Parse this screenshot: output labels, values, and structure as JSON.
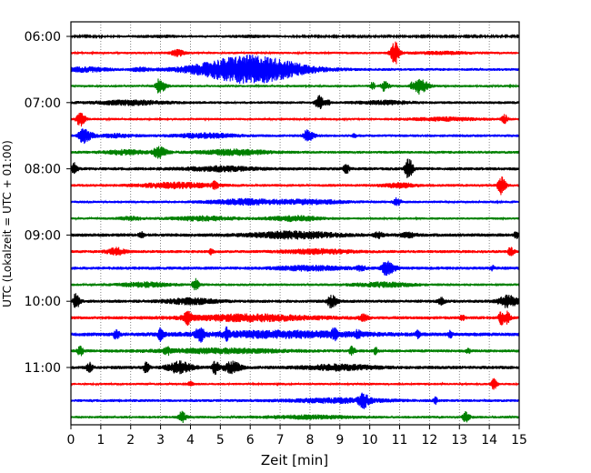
{
  "chart_data": {
    "type": "line",
    "title": "",
    "xlabel": "Zeit  [min]",
    "ylabel": "UTC (Lokalzeit = UTC + 01:00)",
    "xlim": [
      0,
      15
    ],
    "x_ticks": [
      0,
      1,
      2,
      3,
      4,
      5,
      6,
      7,
      8,
      9,
      10,
      11,
      12,
      13,
      14,
      15
    ],
    "grid": "vertical dotted",
    "row_interval_min": 15,
    "colors": [
      "#000000",
      "#ff0000",
      "#0000ff",
      "#008000"
    ],
    "y_tick_labels": [
      "06:00",
      "07:00",
      "08:00",
      "09:00",
      "10:00",
      "11:00"
    ],
    "traces": [
      {
        "utc": "06:00",
        "color": "#000000",
        "base_amp": 0.08,
        "events": [
          [
            3.0,
            0.1,
            0.8,
            0.8
          ],
          [
            6.0,
            0.1,
            0.8,
            0.8
          ]
        ]
      },
      {
        "utc": "06:15",
        "color": "#ff0000",
        "base_amp": 0.12,
        "events": [
          [
            3.55,
            0.3,
            0.15,
            0.2
          ],
          [
            10.85,
            1.1,
            0.1,
            0.1
          ],
          [
            12.5,
            0.1,
            0.8,
            0.8
          ]
        ]
      },
      {
        "utc": "06:30",
        "color": "#0000ff",
        "base_amp": 0.14,
        "events": [
          [
            0.5,
            0.2,
            0.5,
            0.5
          ],
          [
            6.0,
            1.35,
            1.2,
            1.2
          ],
          [
            2.3,
            0.15,
            0.2,
            0.2
          ]
        ]
      },
      {
        "utc": "06:45",
        "color": "#008000",
        "base_amp": 0.12,
        "events": [
          [
            2.95,
            0.7,
            0.08,
            0.15
          ],
          [
            10.1,
            0.4,
            0.05,
            0.05
          ],
          [
            10.5,
            0.5,
            0.08,
            0.1
          ],
          [
            11.65,
            0.8,
            0.1,
            0.2
          ],
          [
            11.4,
            0.3,
            0.05,
            0.05
          ]
        ]
      },
      {
        "utc": "07:00",
        "color": "#000000",
        "base_amp": 0.14,
        "events": [
          [
            2.0,
            0.2,
            0.8,
            0.8
          ],
          [
            8.3,
            0.7,
            0.08,
            0.1
          ],
          [
            8.6,
            0.3,
            0.05,
            0.05
          ],
          [
            10.5,
            0.15,
            0.6,
            0.6
          ]
        ]
      },
      {
        "utc": "07:15",
        "color": "#ff0000",
        "base_amp": 0.12,
        "events": [
          [
            0.3,
            0.7,
            0.08,
            0.12
          ],
          [
            14.5,
            0.45,
            0.06,
            0.08
          ],
          [
            12.5,
            0.15,
            0.8,
            0.8
          ]
        ]
      },
      {
        "utc": "07:30",
        "color": "#0000ff",
        "base_amp": 0.14,
        "events": [
          [
            0.4,
            0.7,
            0.1,
            0.2
          ],
          [
            4.5,
            0.2,
            0.7,
            0.7
          ],
          [
            7.9,
            0.55,
            0.08,
            0.15
          ],
          [
            9.5,
            0.2,
            0.05,
            0.05
          ],
          [
            1.5,
            0.15,
            0.4,
            0.4
          ]
        ]
      },
      {
        "utc": "07:45",
        "color": "#008000",
        "base_amp": 0.14,
        "events": [
          [
            2.9,
            0.55,
            0.1,
            0.2
          ],
          [
            5.5,
            0.25,
            0.8,
            0.8
          ],
          [
            1.8,
            0.2,
            0.5,
            0.5
          ]
        ]
      },
      {
        "utc": "08:00",
        "color": "#000000",
        "base_amp": 0.16,
        "events": [
          [
            0.1,
            0.55,
            0.05,
            0.08
          ],
          [
            9.2,
            0.45,
            0.06,
            0.08
          ],
          [
            11.3,
            1.0,
            0.08,
            0.1
          ],
          [
            5.0,
            0.2,
            0.8,
            0.8
          ]
        ]
      },
      {
        "utc": "08:15",
        "color": "#ff0000",
        "base_amp": 0.14,
        "events": [
          [
            4.8,
            0.3,
            0.05,
            0.1
          ],
          [
            14.4,
            0.85,
            0.08,
            0.1
          ],
          [
            3.5,
            0.25,
            0.8,
            0.8
          ],
          [
            11.0,
            0.2,
            0.4,
            0.4
          ]
        ]
      },
      {
        "utc": "08:30",
        "color": "#0000ff",
        "base_amp": 0.13,
        "events": [
          [
            10.9,
            0.35,
            0.08,
            0.1
          ],
          [
            5.8,
            0.25,
            0.8,
            0.8
          ],
          [
            8.0,
            0.2,
            0.8,
            0.8
          ]
        ]
      },
      {
        "utc": "08:45",
        "color": "#008000",
        "base_amp": 0.12,
        "events": [
          [
            4.5,
            0.2,
            0.8,
            0.8
          ],
          [
            7.5,
            0.25,
            0.6,
            0.6
          ],
          [
            2.0,
            0.15,
            0.3,
            0.3
          ]
        ]
      },
      {
        "utc": "09:00",
        "color": "#000000",
        "base_amp": 0.17,
        "events": [
          [
            2.35,
            0.3,
            0.05,
            0.05
          ],
          [
            7.5,
            0.3,
            1.0,
            1.0
          ],
          [
            10.3,
            0.25,
            0.1,
            0.1
          ],
          [
            11.3,
            0.2,
            0.2,
            0.2
          ],
          [
            14.9,
            0.3,
            0.05,
            0.05
          ]
        ]
      },
      {
        "utc": "09:15",
        "color": "#ff0000",
        "base_amp": 0.15,
        "events": [
          [
            1.5,
            0.35,
            0.2,
            0.2
          ],
          [
            4.7,
            0.25,
            0.05,
            0.05
          ],
          [
            8.3,
            0.2,
            0.8,
            0.8
          ],
          [
            14.7,
            0.45,
            0.05,
            0.08
          ]
        ]
      },
      {
        "utc": "09:30",
        "color": "#0000ff",
        "base_amp": 0.16,
        "events": [
          [
            8.0,
            0.2,
            0.8,
            0.8
          ],
          [
            10.55,
            0.65,
            0.1,
            0.2
          ],
          [
            9.7,
            0.25,
            0.1,
            0.1
          ],
          [
            14.1,
            0.2,
            0.05,
            0.05
          ]
        ]
      },
      {
        "utc": "09:45",
        "color": "#008000",
        "base_amp": 0.13,
        "events": [
          [
            4.15,
            0.6,
            0.06,
            0.1
          ],
          [
            2.5,
            0.2,
            0.6,
            0.6
          ],
          [
            10.5,
            0.2,
            0.7,
            0.7
          ]
        ]
      },
      {
        "utc": "10:00",
        "color": "#000000",
        "base_amp": 0.16,
        "events": [
          [
            0.15,
            0.7,
            0.05,
            0.1
          ],
          [
            8.7,
            0.6,
            0.08,
            0.15
          ],
          [
            4.0,
            0.25,
            0.6,
            0.6
          ],
          [
            12.4,
            0.3,
            0.08,
            0.08
          ],
          [
            14.6,
            0.55,
            0.2,
            0.25
          ]
        ]
      },
      {
        "utc": "10:15",
        "color": "#ff0000",
        "base_amp": 0.16,
        "events": [
          [
            3.9,
            0.55,
            0.08,
            0.1
          ],
          [
            14.4,
            0.6,
            0.06,
            0.08
          ],
          [
            14.6,
            0.55,
            0.06,
            0.08
          ],
          [
            9.8,
            0.3,
            0.1,
            0.1
          ],
          [
            13.1,
            0.25,
            0.05,
            0.05
          ],
          [
            6.0,
            0.3,
            1.5,
            1.5
          ]
        ]
      },
      {
        "utc": "10:30",
        "color": "#0000ff",
        "base_amp": 0.18,
        "events": [
          [
            1.5,
            0.45,
            0.05,
            0.08
          ],
          [
            3.0,
            0.55,
            0.06,
            0.08
          ],
          [
            4.3,
            0.7,
            0.08,
            0.1
          ],
          [
            5.2,
            0.45,
            0.05,
            0.08
          ],
          [
            8.8,
            0.4,
            0.05,
            0.08
          ],
          [
            9.6,
            0.35,
            0.05,
            0.05
          ],
          [
            11.6,
            0.35,
            0.05,
            0.05
          ],
          [
            12.7,
            0.3,
            0.05,
            0.05
          ],
          [
            7.0,
            0.3,
            2.0,
            2.0
          ]
        ]
      },
      {
        "utc": "10:45",
        "color": "#008000",
        "base_amp": 0.15,
        "events": [
          [
            0.3,
            0.45,
            0.06,
            0.08
          ],
          [
            3.2,
            0.35,
            0.05,
            0.08
          ],
          [
            9.4,
            0.45,
            0.05,
            0.08
          ],
          [
            10.2,
            0.3,
            0.05,
            0.05
          ],
          [
            13.3,
            0.2,
            0.05,
            0.05
          ],
          [
            5.0,
            0.2,
            1.5,
            1.5
          ]
        ]
      },
      {
        "utc": "11:00",
        "color": "#000000",
        "base_amp": 0.17,
        "events": [
          [
            0.6,
            0.45,
            0.06,
            0.08
          ],
          [
            2.5,
            0.5,
            0.05,
            0.08
          ],
          [
            3.6,
            0.55,
            0.25,
            0.3
          ],
          [
            4.8,
            0.65,
            0.05,
            0.1
          ],
          [
            5.4,
            0.55,
            0.2,
            0.2
          ],
          [
            9.0,
            0.25,
            0.8,
            0.8
          ]
        ]
      },
      {
        "utc": "11:15",
        "color": "#ff0000",
        "base_amp": 0.12,
        "events": [
          [
            4.0,
            0.3,
            0.05,
            0.05
          ],
          [
            14.15,
            0.5,
            0.06,
            0.08
          ]
        ]
      },
      {
        "utc": "11:30",
        "color": "#0000ff",
        "base_amp": 0.14,
        "events": [
          [
            9.75,
            0.6,
            0.08,
            0.15
          ],
          [
            12.2,
            0.3,
            0.05,
            0.05
          ],
          [
            9.0,
            0.2,
            1.2,
            1.2
          ]
        ]
      },
      {
        "utc": "11:45",
        "color": "#008000",
        "base_amp": 0.13,
        "events": [
          [
            3.7,
            0.55,
            0.06,
            0.1
          ],
          [
            13.2,
            0.5,
            0.06,
            0.1
          ],
          [
            8.0,
            0.15,
            1.0,
            1.0
          ]
        ]
      }
    ]
  }
}
